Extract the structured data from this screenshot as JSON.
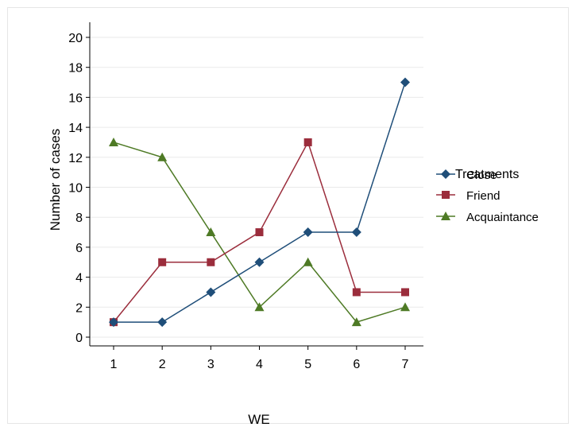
{
  "chart_data": {
    "type": "line",
    "title": "",
    "xlabel": "WE",
    "ylabel": "Number of cases",
    "x": [
      1,
      2,
      3,
      4,
      5,
      6,
      7
    ],
    "xlim": [
      0.55,
      7.4
    ],
    "ylim": [
      0,
      20
    ],
    "yticks": [
      0,
      2,
      4,
      6,
      8,
      10,
      12,
      14,
      16,
      18,
      20
    ],
    "grid": true,
    "legend_title": "Treatments",
    "legend_position": "right",
    "series": [
      {
        "name": "Close",
        "marker": "diamond",
        "color": "#1f4e79",
        "values": [
          1,
          1,
          3,
          5,
          7,
          7,
          17
        ]
      },
      {
        "name": "Friend",
        "marker": "square",
        "color": "#9b2d3c",
        "values": [
          1,
          5,
          5,
          7,
          13,
          3,
          3
        ]
      },
      {
        "name": "Acquaintance",
        "marker": "triangle",
        "color": "#4e7a25",
        "values": [
          13,
          12,
          7,
          2,
          5,
          1,
          2
        ]
      }
    ]
  }
}
